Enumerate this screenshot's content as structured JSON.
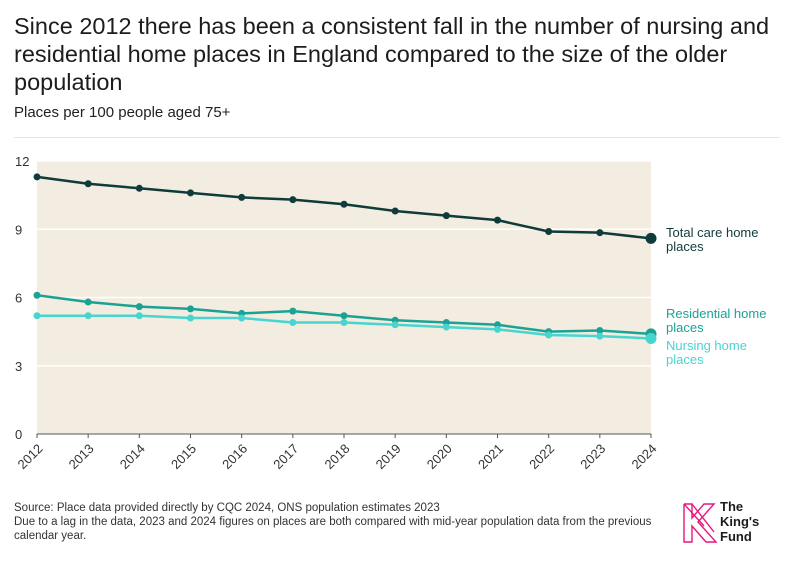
{
  "title": "Since 2012 there has been a consistent fall in the number of nursing and residential home places in England compared to the size of the older population",
  "subtitle": "Places per 100 people aged 75+",
  "footer": {
    "source": "Source: Place data provided directly by CQC 2024, ONS population estimates 2023",
    "note": "Due to a lag in the data, 2023 and 2024 figures on places are both compared with mid-year population data from the previous calendar year."
  },
  "logo": {
    "line1": "The",
    "line2": "King's",
    "line3": "Fund"
  },
  "colors": {
    "plot_bg": "#f3ece0",
    "total": "#0f3b3a",
    "residential": "#1aa394",
    "nursing": "#48d4cf",
    "logo": "#e5177e"
  },
  "chart_data": {
    "type": "line",
    "title": "Since 2012 there has been a consistent fall in the number of nursing and residential home places in England compared to the size of the older population",
    "ylabel": "Places per 100 people aged 75+",
    "xlabel": "",
    "x": [
      "2012",
      "2013",
      "2014",
      "2015",
      "2016",
      "2017",
      "2018",
      "2019",
      "2020",
      "2021",
      "2022",
      "2023",
      "2024"
    ],
    "ylim": [
      0,
      12
    ],
    "yticks": [
      0,
      3,
      6,
      9,
      12
    ],
    "grid": true,
    "series": [
      {
        "name": "Total care home places",
        "label_lines": [
          "Total care home",
          "places"
        ],
        "color": "#0f3b3a",
        "values": [
          11.3,
          11.0,
          10.8,
          10.6,
          10.4,
          10.3,
          10.1,
          9.8,
          9.6,
          9.4,
          8.9,
          8.85,
          8.6
        ]
      },
      {
        "name": "Residential home places",
        "label_lines": [
          "Residential home",
          "places"
        ],
        "color": "#1aa394",
        "values": [
          6.1,
          5.8,
          5.6,
          5.5,
          5.3,
          5.4,
          5.2,
          5.0,
          4.9,
          4.8,
          4.5,
          4.55,
          4.4
        ]
      },
      {
        "name": "Nursing home places",
        "label_lines": [
          "Nursing home",
          "places"
        ],
        "color": "#48d4cf",
        "values": [
          5.2,
          5.2,
          5.2,
          5.1,
          5.1,
          4.9,
          4.9,
          4.8,
          4.7,
          4.6,
          4.35,
          4.3,
          4.2
        ]
      }
    ]
  }
}
